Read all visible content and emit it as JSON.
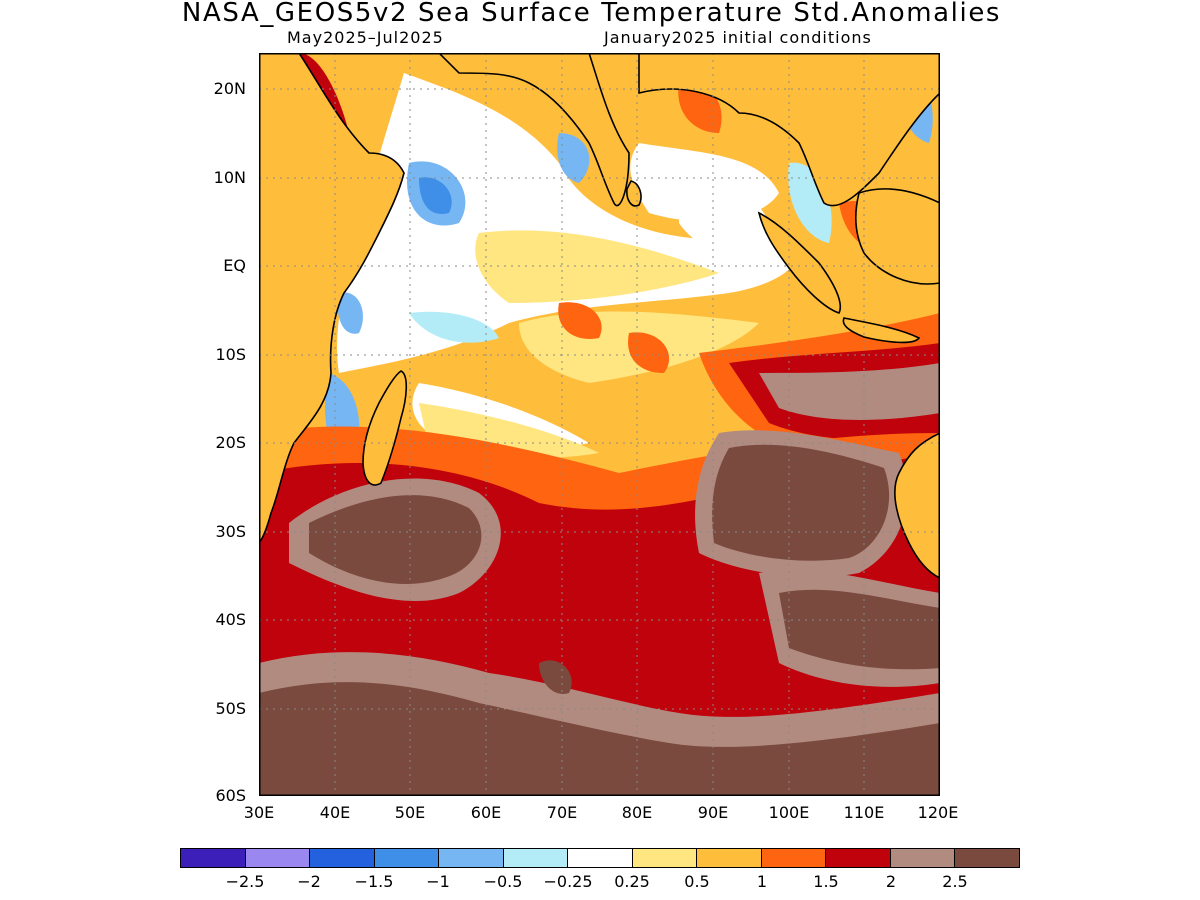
{
  "title": "NASA_GEOS5v2 Sea Surface Temperature Std.Anomalies",
  "subtitle_left": "May2025–Jul2025",
  "subtitle_right": "January2025 initial conditions",
  "lat_labels": [
    "20N",
    "10N",
    "EQ",
    "10S",
    "20S",
    "30S",
    "40S",
    "50S",
    "60S"
  ],
  "lon_labels": [
    "30E",
    "40E",
    "50E",
    "60E",
    "70E",
    "80E",
    "90E",
    "100E",
    "110E",
    "120E"
  ],
  "colorbar": {
    "colors": [
      "#3c1fb8",
      "#9b87f0",
      "#2461df",
      "#3f8ee8",
      "#76b6f2",
      "#b3ecf7",
      "#ffffff",
      "#ffe680",
      "#ffbd3c",
      "#ff6410",
      "#c0020c",
      "#b28b80",
      "#7a4a3e"
    ],
    "labels": [
      "−2.5",
      "−2",
      "−1.5",
      "−1",
      "−0.5",
      "−0.25",
      "0.25",
      "0.5",
      "1",
      "1.5",
      "2",
      "2.5"
    ]
  }
}
